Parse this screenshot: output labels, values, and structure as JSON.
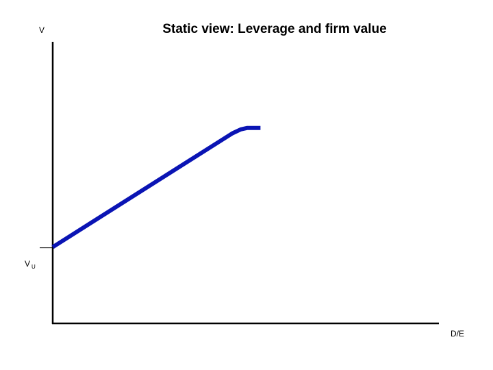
{
  "chart_data": {
    "type": "line",
    "title": "Static view: Leverage and firm value",
    "xlabel": "D/E",
    "ylabel": "V",
    "y_tick": {
      "main": "V",
      "sub": "U"
    },
    "grid": false,
    "legend": "none",
    "xlim": [
      0,
      100
    ],
    "ylim": [
      0,
      100
    ],
    "series": [
      {
        "color": "#0a14b4",
        "x": [
          0,
          46.5,
          48.7,
          50.3,
          53.8
        ],
        "y": [
          27.1,
          67.5,
          68.9,
          69.4,
          69.4
        ]
      }
    ]
  },
  "colors": {
    "axis": "#000000",
    "line": "#0a14b4"
  }
}
